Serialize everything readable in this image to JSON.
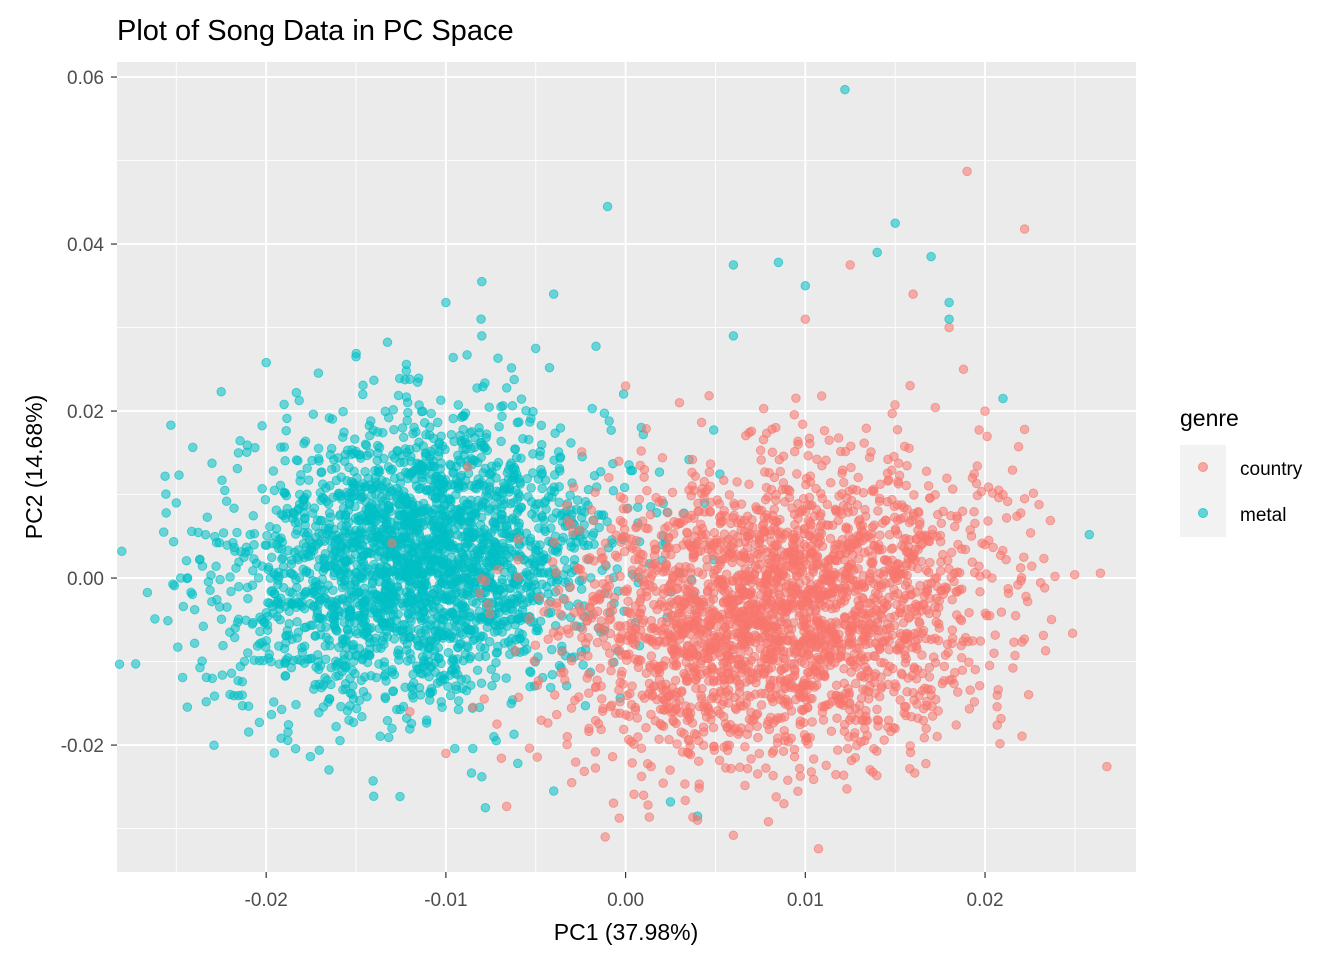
{
  "chart_data": {
    "type": "scatter",
    "title": "Plot of Song Data in PC Space",
    "xlabel": "PC1 (37.98%)",
    "ylabel": "PC2 (14.68%)",
    "xlim": [
      -0.0283,
      0.0284
    ],
    "ylim": [
      -0.0352,
      0.0618
    ],
    "x_ticks": [
      -0.02,
      -0.01,
      0.0,
      0.01,
      0.02
    ],
    "x_tick_labels": [
      "-0.02",
      "-0.01",
      "0.00",
      "0.01",
      "0.02"
    ],
    "y_ticks": [
      -0.02,
      0.0,
      0.02,
      0.04,
      0.06
    ],
    "y_tick_labels": [
      "-0.02",
      "0.00",
      "0.02",
      "0.04",
      "0.06"
    ],
    "grid": true,
    "legend": {
      "title": "genre",
      "position": "right",
      "entries": [
        "country",
        "metal"
      ]
    },
    "colors": {
      "panel": "#EBEBEB",
      "grid_major": "#FFFFFF",
      "country": "#F8766D",
      "metal": "#00BFC4"
    },
    "series": [
      {
        "name": "metal",
        "n_points": 2600,
        "center": [
          -0.0115,
          0.002
        ],
        "sd": [
          0.0052,
          0.0085
        ],
        "points": [
          [
            -0.0257,
            0.0055
          ],
          [
            -0.0253,
            0.0183
          ],
          [
            -0.025,
            0.009
          ],
          [
            -0.0237,
            0.0022
          ],
          [
            -0.0225,
            0.0223
          ],
          [
            -0.0223,
            0.0105
          ],
          [
            -0.02,
            0.0258
          ],
          [
            -0.019,
            0.0208
          ],
          [
            -0.015,
            0.0265
          ],
          [
            -0.012,
            0.0238
          ],
          [
            -0.01,
            0.033
          ],
          [
            -0.008,
            0.0355
          ],
          [
            -0.008,
            0.029
          ],
          [
            -0.005,
            0.0275
          ],
          [
            -0.004,
            0.034
          ],
          [
            -0.001,
            0.0445
          ],
          [
            -0.013,
            -0.018
          ],
          [
            -0.008,
            -0.0238
          ],
          [
            -0.0078,
            -0.0275
          ],
          [
            -0.006,
            -0.0222
          ],
          [
            -0.004,
            -0.0255
          ],
          [
            0.0025,
            -0.0268
          ],
          [
            0.004,
            -0.0285
          ],
          [
            0.006,
            0.0375
          ],
          [
            0.0085,
            0.0378
          ],
          [
            0.01,
            0.035
          ],
          [
            0.0122,
            0.0585
          ],
          [
            0.015,
            0.0425
          ],
          [
            0.014,
            0.039
          ],
          [
            0.017,
            0.0385
          ],
          [
            0.018,
            0.031
          ],
          [
            0.021,
            0.0215
          ],
          [
            0.0258,
            0.0052
          ],
          [
            0.018,
            0.033
          ],
          [
            0.006,
            0.029
          ]
        ]
      },
      {
        "name": "country",
        "n_points": 2600,
        "center": [
          0.0085,
          -0.004
        ],
        "sd": [
          0.0058,
          0.0085
        ],
        "points": [
          [
            0.019,
            0.0487
          ],
          [
            0.0222,
            0.0418
          ],
          [
            0.0125,
            0.0375
          ],
          [
            0.0222,
            0.0178
          ],
          [
            0.0222,
            0.0095
          ],
          [
            0.023,
            0.0088
          ],
          [
            0.022,
            -0.0003
          ],
          [
            0.0205,
            -0.009
          ],
          [
            0.02,
            0.004
          ],
          [
            0.006,
            -0.0308
          ],
          [
            0.004,
            -0.029
          ],
          [
            0.001,
            -0.026
          ],
          [
            -0.003,
            -0.0245
          ],
          [
            -0.01,
            -0.021
          ],
          [
            -0.012,
            -0.016
          ],
          [
            -0.013,
            0.0042
          ],
          [
            0.016,
            0.034
          ],
          [
            0.018,
            0.03
          ],
          [
            0.02,
            0.02
          ],
          [
            0.015,
            -0.018
          ],
          [
            0.017,
            -0.014
          ],
          [
            0.021,
            0.01
          ],
          [
            0.0188,
            0.025
          ],
          [
            0.01,
            0.031
          ],
          [
            0.003,
            0.021
          ],
          [
            0.0,
            0.023
          ]
        ]
      }
    ]
  }
}
